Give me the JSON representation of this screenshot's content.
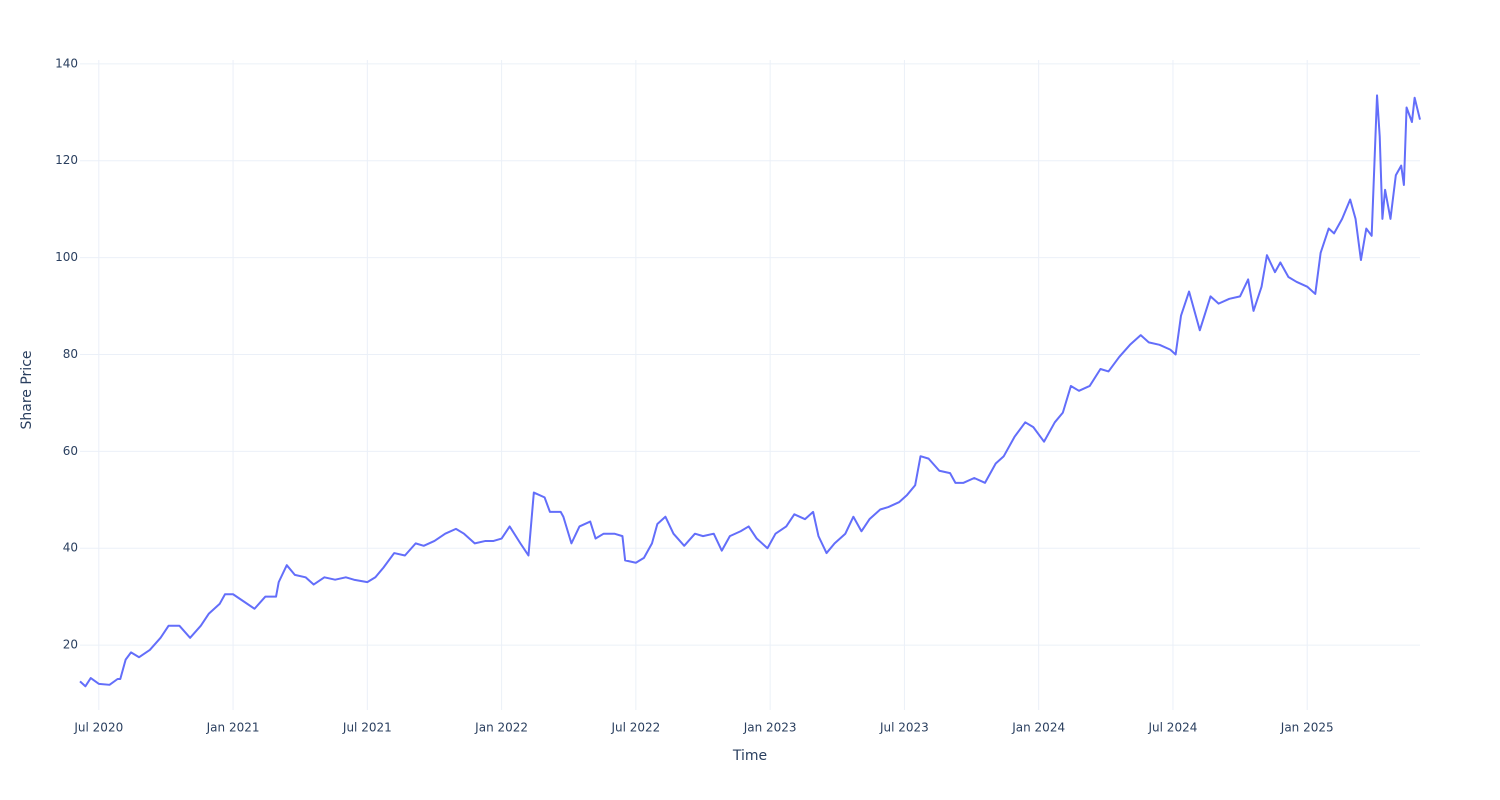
{
  "chart_data": {
    "type": "line",
    "xlabel": "Time",
    "ylabel": "Share Price",
    "x": [
      2020.43,
      2020.45,
      2020.47,
      2020.5,
      2020.54,
      2020.57,
      2020.58,
      2020.6,
      2020.62,
      2020.65,
      2020.69,
      2020.73,
      2020.76,
      2020.8,
      2020.84,
      2020.88,
      2020.91,
      2020.95,
      2020.97,
      2021.0,
      2021.04,
      2021.08,
      2021.12,
      2021.16,
      2021.17,
      2021.2,
      2021.23,
      2021.27,
      2021.3,
      2021.34,
      2021.38,
      2021.42,
      2021.45,
      2021.5,
      2021.53,
      2021.56,
      2021.6,
      2021.64,
      2021.68,
      2021.71,
      2021.75,
      2021.79,
      2021.83,
      2021.86,
      2021.9,
      2021.94,
      2021.97,
      2022.0,
      2022.03,
      2022.07,
      2022.1,
      2022.12,
      2022.16,
      2022.18,
      2022.22,
      2022.23,
      2022.26,
      2022.29,
      2022.33,
      2022.35,
      2022.38,
      2022.42,
      2022.45,
      2022.46,
      2022.5,
      2022.53,
      2022.56,
      2022.58,
      2022.61,
      2022.64,
      2022.68,
      2022.72,
      2022.75,
      2022.79,
      2022.82,
      2022.85,
      2022.89,
      2022.92,
      2022.95,
      2022.99,
      2023.02,
      2023.06,
      2023.09,
      2023.13,
      2023.16,
      2023.18,
      2023.21,
      2023.24,
      2023.28,
      2023.31,
      2023.34,
      2023.37,
      2023.41,
      2023.44,
      2023.48,
      2023.51,
      2023.54,
      2023.56,
      2023.59,
      2023.63,
      2023.67,
      2023.69,
      2023.72,
      2023.76,
      2023.8,
      2023.84,
      2023.87,
      2023.91,
      2023.95,
      2023.98,
      2024.02,
      2024.06,
      2024.09,
      2024.12,
      2024.15,
      2024.19,
      2024.23,
      2024.26,
      2024.3,
      2024.34,
      2024.38,
      2024.41,
      2024.45,
      2024.49,
      2024.51,
      2024.53,
      2024.56,
      2024.6,
      2024.64,
      2024.67,
      2024.71,
      2024.75,
      2024.78,
      2024.8,
      2024.83,
      2024.85,
      2024.88,
      2024.9,
      2024.93,
      2024.96,
      2025.0,
      2025.03,
      2025.05,
      2025.08,
      2025.1,
      2025.13,
      2025.16,
      2025.18,
      2025.2,
      2025.22,
      2025.24,
      2025.26,
      2025.27,
      2025.28,
      2025.29,
      2025.31,
      2025.33,
      2025.35,
      2025.36,
      2025.37,
      2025.39,
      2025.4,
      2025.42
    ],
    "series": [
      {
        "name": "Share Price",
        "color": "#636efa",
        "values": [
          12.5,
          11.5,
          13.2,
          12,
          11.8,
          13,
          13,
          17,
          18.5,
          17.5,
          19,
          21.5,
          24,
          24,
          21.5,
          24,
          26.5,
          28.5,
          30.5,
          30.5,
          29,
          27.5,
          30,
          30,
          33,
          36.5,
          34.5,
          34,
          32.5,
          34,
          33.5,
          34,
          33.5,
          33,
          34,
          36,
          39,
          38.5,
          41,
          40.5,
          41.5,
          43,
          44,
          43,
          41,
          41.5,
          41.5,
          42,
          44.5,
          41,
          38.5,
          51.5,
          50.5,
          47.5,
          47.5,
          46.5,
          41,
          44.5,
          45.5,
          42,
          43,
          43,
          42.5,
          37.5,
          37,
          38,
          41,
          45,
          46.5,
          43,
          40.5,
          43,
          42.5,
          43,
          39.5,
          42.5,
          43.5,
          44.5,
          42,
          40,
          43,
          44.5,
          47,
          46,
          47.5,
          42.5,
          39,
          41,
          43,
          46.5,
          43.5,
          46,
          48,
          48.5,
          49.5,
          51,
          53,
          59,
          58.5,
          56,
          55.5,
          53.5,
          53.5,
          54.5,
          53.5,
          57.5,
          59,
          63,
          66,
          65,
          62,
          66,
          68,
          73.5,
          72.5,
          73.5,
          77,
          76.5,
          79.5,
          82,
          84,
          82.5,
          82,
          81,
          80,
          88,
          93,
          85,
          92,
          90.5,
          91.5,
          92,
          95.5,
          89,
          94,
          100.5,
          97,
          99,
          96,
          95,
          94,
          92.5,
          101,
          106,
          105,
          108,
          112,
          108,
          99.5,
          106,
          104.5,
          133.5,
          125,
          108,
          114,
          108,
          117,
          119,
          115,
          131,
          128,
          133,
          128.5
        ]
      }
    ],
    "xlim": [
      2020.43,
      2025.42
    ],
    "xticks": [
      {
        "value": 2020.5,
        "label": "Jul 2020"
      },
      {
        "value": 2021.0,
        "label": "Jan 2021"
      },
      {
        "value": 2021.5,
        "label": "Jul 2021"
      },
      {
        "value": 2022.0,
        "label": "Jan 2022"
      },
      {
        "value": 2022.5,
        "label": "Jul 2022"
      },
      {
        "value": 2023.0,
        "label": "Jan 2023"
      },
      {
        "value": 2023.5,
        "label": "Jul 2023"
      },
      {
        "value": 2024.0,
        "label": "Jan 2024"
      },
      {
        "value": 2024.5,
        "label": "Jul 2024"
      },
      {
        "value": 2025.0,
        "label": "Jan 2025"
      }
    ],
    "ylim": [
      6.6,
      140.8
    ],
    "yticks": [
      20,
      40,
      60,
      80,
      100,
      120,
      140
    ],
    "grid": true
  }
}
